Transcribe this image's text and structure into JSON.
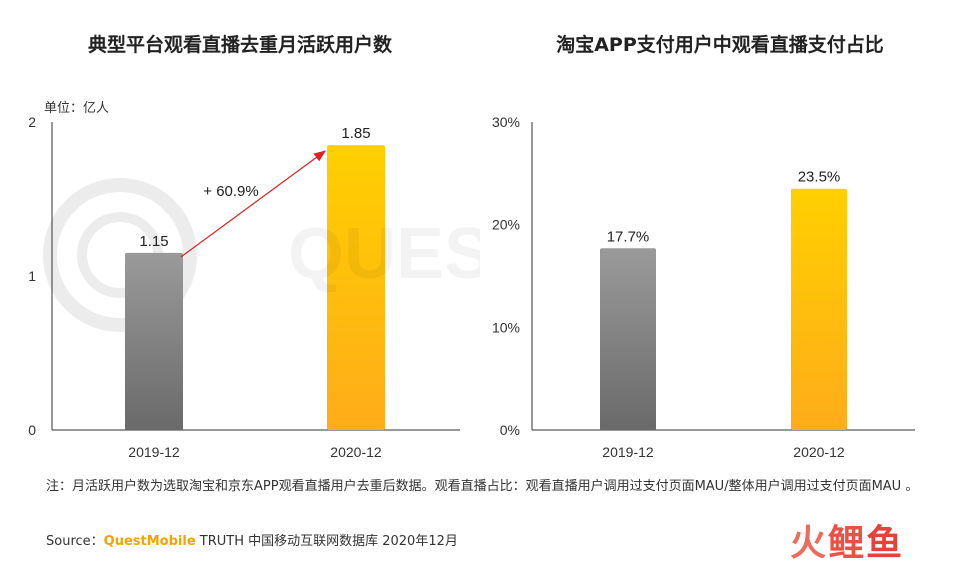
{
  "chart_data": [
    {
      "type": "bar",
      "title": "典型平台观看直播去重月活跃用户数",
      "unit_label": "单位：亿人",
      "categories": [
        "2019-12",
        "2020-12"
      ],
      "values": [
        1.15,
        1.85
      ],
      "value_labels": [
        "1.15",
        "1.85"
      ],
      "ylim": [
        0,
        2
      ],
      "yticks": [
        "0",
        "1",
        "2"
      ],
      "annotation": "+ 60.9%",
      "grid": false,
      "bar_colors": [
        [
          "#9a9a9a",
          "#6a6a6a"
        ],
        [
          "#ffd000",
          "#ffac1a"
        ]
      ]
    },
    {
      "type": "bar",
      "title": "淘宝APP支付用户中观看直播支付占比",
      "categories": [
        "2019-12",
        "2020-12"
      ],
      "values": [
        17.7,
        23.5
      ],
      "value_labels": [
        "17.7%",
        "23.5%"
      ],
      "ylim": [
        0,
        30
      ],
      "yticks": [
        "0%",
        "10%",
        "20%",
        "30%"
      ],
      "grid": false,
      "bar_colors": [
        [
          "#9a9a9a",
          "#6a6a6a"
        ],
        [
          "#ffd000",
          "#ffac1a"
        ]
      ]
    }
  ],
  "footnote": "注：月活跃用户数为选取淘宝和京东APP观看直播用户去重后数据。观看直播占比：观看直播用户调用过支付页面MAU/整体用户调用过支付页面MAU 。",
  "source": {
    "prefix": "Source：",
    "brand": "QuestMobile",
    "suffix": " TRUTH 中国移动互联网数据库 2020年12月"
  },
  "watermark": "QUEST MOBILE",
  "logo": [
    "火",
    "鲤",
    "鱼"
  ],
  "colors": {
    "arrow": "#e02020",
    "axis": "#333333"
  }
}
